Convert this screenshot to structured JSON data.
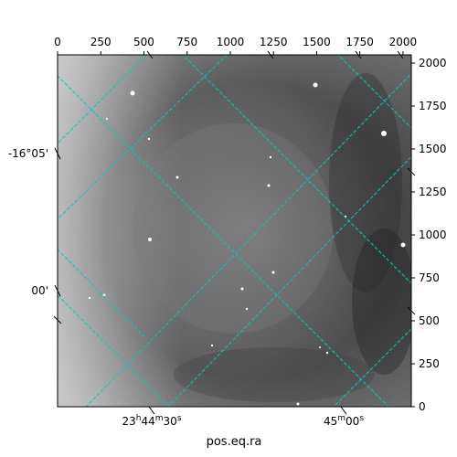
{
  "chart_data": {
    "type": "heatmap",
    "title": "",
    "xlabel": "pos.eq.ra",
    "ylabel": "",
    "pixel_axes": {
      "xlim": [
        0,
        2048
      ],
      "ylim": [
        0,
        2048
      ],
      "top_ticks": [
        0,
        250,
        500,
        750,
        1000,
        1250,
        1500,
        1750,
        2000
      ],
      "right_ticks": [
        0,
        250,
        500,
        750,
        1000,
        1250,
        1500,
        1750,
        2000
      ]
    },
    "world_ticks": {
      "ra": [
        {
          "label": "23",
          "sup1": "h",
          "mid": "44",
          "sup2": "m",
          "end": "30",
          "sup3": "s"
        },
        {
          "label": "",
          "sup1": "",
          "mid": "45",
          "sup2": "m",
          "end": "00",
          "sup3": "s"
        }
      ],
      "dec": [
        {
          "label": "-16°05'"
        },
        {
          "label": "00'"
        }
      ]
    },
    "grid": true,
    "grid_color": "#00c8c8",
    "colormap": "gray",
    "image_description_values": {
      "background_level": "dark-gray nebula shell",
      "stars": true
    }
  }
}
